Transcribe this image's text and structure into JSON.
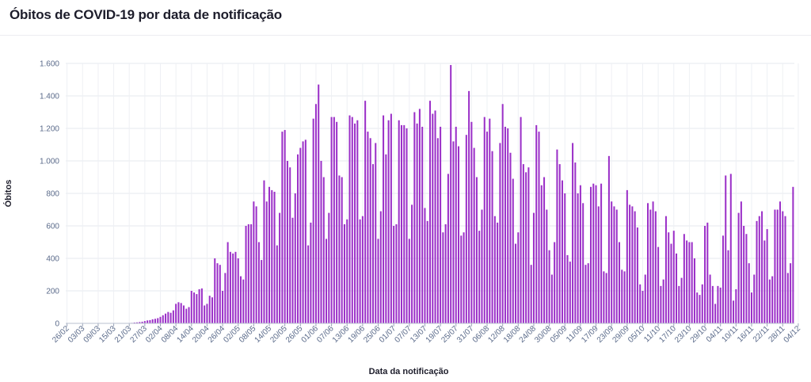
{
  "header": {
    "title": "Óbitos de COVID-19 por data de notificação"
  },
  "chart_data": {
    "type": "bar",
    "xlabel": "Data da notificação",
    "ylabel": "Óbitos",
    "ylim": [
      0,
      1600
    ],
    "yticks": [
      0,
      200,
      400,
      600,
      800,
      1000,
      1200,
      1400,
      1600
    ],
    "ytick_labels": [
      "0",
      "200",
      "400",
      "600",
      "800",
      "1.000",
      "1.200",
      "1.400",
      "1.600"
    ],
    "xtick_labels": [
      "26/02",
      "03/03",
      "09/03",
      "15/03",
      "21/03",
      "27/03",
      "02/04",
      "08/04",
      "14/04",
      "20/04",
      "26/04",
      "02/05",
      "08/05",
      "14/05",
      "20/05",
      "26/05",
      "01/06",
      "07/06",
      "13/06",
      "19/06",
      "25/06",
      "01/07",
      "07/07",
      "13/07",
      "19/07",
      "25/07",
      "31/07",
      "06/08",
      "12/08",
      "18/08",
      "24/08",
      "30/08",
      "05/09",
      "11/09",
      "17/09",
      "23/09",
      "29/09",
      "05/10",
      "11/10",
      "17/10",
      "23/10",
      "29/10",
      "04/11",
      "10/11",
      "16/11",
      "22/11",
      "28/11",
      "04/12"
    ],
    "bar_color": "#9b30c8",
    "grid": true,
    "series": [
      {
        "values": [
          0,
          0,
          0,
          0,
          0,
          0,
          0,
          0,
          0,
          0,
          0,
          0,
          0,
          0,
          0,
          0,
          0,
          0,
          0,
          0,
          0,
          0,
          0,
          0,
          2,
          3,
          5,
          6,
          8,
          10,
          14,
          18,
          20,
          25,
          28,
          32,
          40,
          50,
          60,
          70,
          65,
          80,
          120,
          130,
          125,
          110,
          90,
          100,
          200,
          190,
          180,
          210,
          215,
          110,
          120,
          170,
          160,
          400,
          370,
          360,
          200,
          310,
          500,
          440,
          430,
          440,
          400,
          290,
          270,
          600,
          610,
          610,
          750,
          720,
          500,
          390,
          880,
          750,
          840,
          820,
          810,
          480,
          680,
          1180,
          1190,
          1000,
          960,
          650,
          800,
          1040,
          1080,
          1120,
          1130,
          480,
          620,
          1260,
          1350,
          1470,
          1000,
          900,
          520,
          680,
          1270,
          1270,
          1240,
          910,
          900,
          610,
          640,
          1280,
          1270,
          1230,
          1250,
          640,
          660,
          1370,
          1180,
          1140,
          980,
          1110,
          520,
          690,
          1280,
          1040,
          1250,
          1290,
          600,
          610,
          1250,
          1220,
          1220,
          1200,
          520,
          730,
          1300,
          1230,
          1320,
          1210,
          710,
          630,
          1370,
          1290,
          1310,
          1140,
          1210,
          560,
          610,
          920,
          1590,
          1120,
          1210,
          1090,
          540,
          560,
          1160,
          1430,
          1240,
          1080,
          900,
          570,
          700,
          1270,
          1180,
          1260,
          1060,
          660,
          620,
          1110,
          1350,
          1210,
          1200,
          1050,
          890,
          490,
          560,
          1270,
          980,
          930,
          960,
          360,
          680,
          1220,
          1180,
          850,
          900,
          700,
          450,
          300,
          500,
          1070,
          980,
          880,
          800,
          420,
          380,
          1110,
          990,
          800,
          850,
          740,
          360,
          370,
          840,
          860,
          850,
          720,
          860,
          320,
          310,
          1030,
          750,
          720,
          700,
          500,
          330,
          320,
          820,
          730,
          720,
          690,
          590,
          240,
          200,
          300,
          740,
          700,
          750,
          690,
          470,
          230,
          270,
          660,
          560,
          490,
          570,
          430,
          230,
          280,
          550,
          510,
          500,
          500,
          400,
          190,
          175,
          240,
          600,
          620,
          300,
          230,
          120,
          230,
          220,
          540,
          910,
          450,
          920,
          140,
          210,
          680,
          750,
          600,
          550,
          370,
          190,
          300,
          630,
          660,
          690,
          510,
          580,
          270,
          290,
          700,
          700,
          750,
          690,
          660,
          310,
          370,
          840
        ]
      }
    ]
  }
}
